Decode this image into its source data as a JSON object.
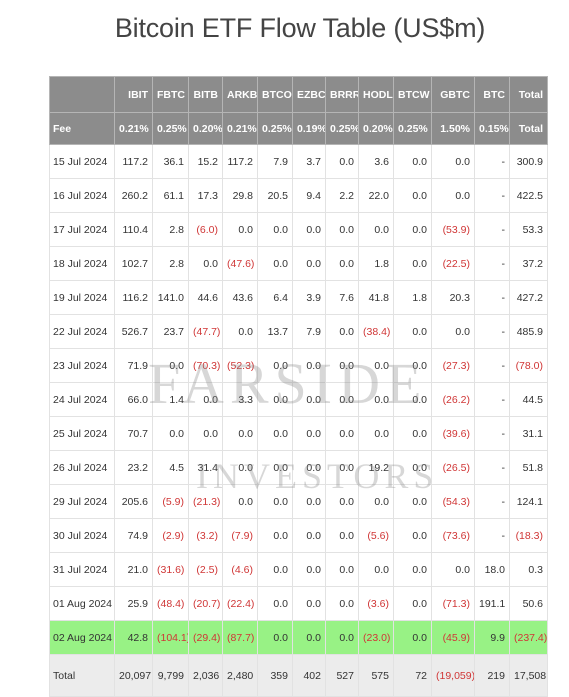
{
  "title": "Bitcoin ETF Flow Table (US$m)",
  "watermark": {
    "line1": "FARSIDE",
    "line2": "INVESTORS"
  },
  "colors": {
    "header_bg": "#8c8c8c",
    "highlight_row": "#98f285",
    "negative": "#d03636",
    "total_row": "#ececec"
  },
  "chart_data": {
    "type": "table",
    "columns": [
      "",
      "IBIT",
      "FBTC",
      "BITB",
      "ARKB",
      "BTCO",
      "EZBC",
      "BRRR",
      "HODL",
      "BTCW",
      "GBTC",
      "BTC",
      "Total"
    ],
    "fees": [
      "Fee",
      "0.21%",
      "0.25%",
      "0.20%",
      "0.21%",
      "0.25%",
      "0.19%",
      "0.25%",
      "0.20%",
      "0.25%",
      "1.50%",
      "0.15%",
      "Total"
    ],
    "rows": [
      [
        "15 Jul 2024",
        "117.2",
        "36.1",
        "15.2",
        "117.2",
        "7.9",
        "3.7",
        "0.0",
        "3.6",
        "0.0",
        "0.0",
        "-",
        "300.9"
      ],
      [
        "16 Jul 2024",
        "260.2",
        "61.1",
        "17.3",
        "29.8",
        "20.5",
        "9.4",
        "2.2",
        "22.0",
        "0.0",
        "0.0",
        "-",
        "422.5"
      ],
      [
        "17 Jul 2024",
        "110.4",
        "2.8",
        "(6.0)",
        "0.0",
        "0.0",
        "0.0",
        "0.0",
        "0.0",
        "0.0",
        "(53.9)",
        "-",
        "53.3"
      ],
      [
        "18 Jul 2024",
        "102.7",
        "2.8",
        "0.0",
        "(47.6)",
        "0.0",
        "0.0",
        "0.0",
        "1.8",
        "0.0",
        "(22.5)",
        "-",
        "37.2"
      ],
      [
        "19 Jul 2024",
        "116.2",
        "141.0",
        "44.6",
        "43.6",
        "6.4",
        "3.9",
        "7.6",
        "41.8",
        "1.8",
        "20.3",
        "-",
        "427.2"
      ],
      [
        "22 Jul 2024",
        "526.7",
        "23.7",
        "(47.7)",
        "0.0",
        "13.7",
        "7.9",
        "0.0",
        "(38.4)",
        "0.0",
        "0.0",
        "-",
        "485.9"
      ],
      [
        "23 Jul 2024",
        "71.9",
        "0.0",
        "(70.3)",
        "(52.3)",
        "0.0",
        "0.0",
        "0.0",
        "0.0",
        "0.0",
        "(27.3)",
        "-",
        "(78.0)"
      ],
      [
        "24 Jul 2024",
        "66.0",
        "1.4",
        "0.0",
        "3.3",
        "0.0",
        "0.0",
        "0.0",
        "0.0",
        "0.0",
        "(26.2)",
        "-",
        "44.5"
      ],
      [
        "25 Jul 2024",
        "70.7",
        "0.0",
        "0.0",
        "0.0",
        "0.0",
        "0.0",
        "0.0",
        "0.0",
        "0.0",
        "(39.6)",
        "-",
        "31.1"
      ],
      [
        "26 Jul 2024",
        "23.2",
        "4.5",
        "31.4",
        "0.0",
        "0.0",
        "0.0",
        "0.0",
        "19.2",
        "0.0",
        "(26.5)",
        "-",
        "51.8"
      ],
      [
        "29 Jul 2024",
        "205.6",
        "(5.9)",
        "(21.3)",
        "0.0",
        "0.0",
        "0.0",
        "0.0",
        "0.0",
        "0.0",
        "(54.3)",
        "-",
        "124.1"
      ],
      [
        "30 Jul 2024",
        "74.9",
        "(2.9)",
        "(3.2)",
        "(7.9)",
        "0.0",
        "0.0",
        "0.0",
        "(5.6)",
        "0.0",
        "(73.6)",
        "-",
        "(18.3)"
      ],
      [
        "31 Jul 2024",
        "21.0",
        "(31.6)",
        "(2.5)",
        "(4.6)",
        "0.0",
        "0.0",
        "0.0",
        "0.0",
        "0.0",
        "0.0",
        "18.0",
        "0.3"
      ],
      [
        "01 Aug 2024",
        "25.9",
        "(48.4)",
        "(20.7)",
        "(22.4)",
        "0.0",
        "0.0",
        "0.0",
        "(3.6)",
        "0.0",
        "(71.3)",
        "191.1",
        "50.6"
      ],
      [
        "02 Aug 2024",
        "42.8",
        "(104.1)",
        "(29.4)",
        "(87.7)",
        "0.0",
        "0.0",
        "0.0",
        "(23.0)",
        "0.0",
        "(45.9)",
        "9.9",
        "(237.4)"
      ]
    ],
    "highlighted_row": "02 Aug 2024",
    "total_row": [
      "Total",
      "20,097",
      "9,799",
      "2,036",
      "2,480",
      "359",
      "402",
      "527",
      "575",
      "72",
      "(19,059)",
      "219",
      "17,508"
    ]
  }
}
